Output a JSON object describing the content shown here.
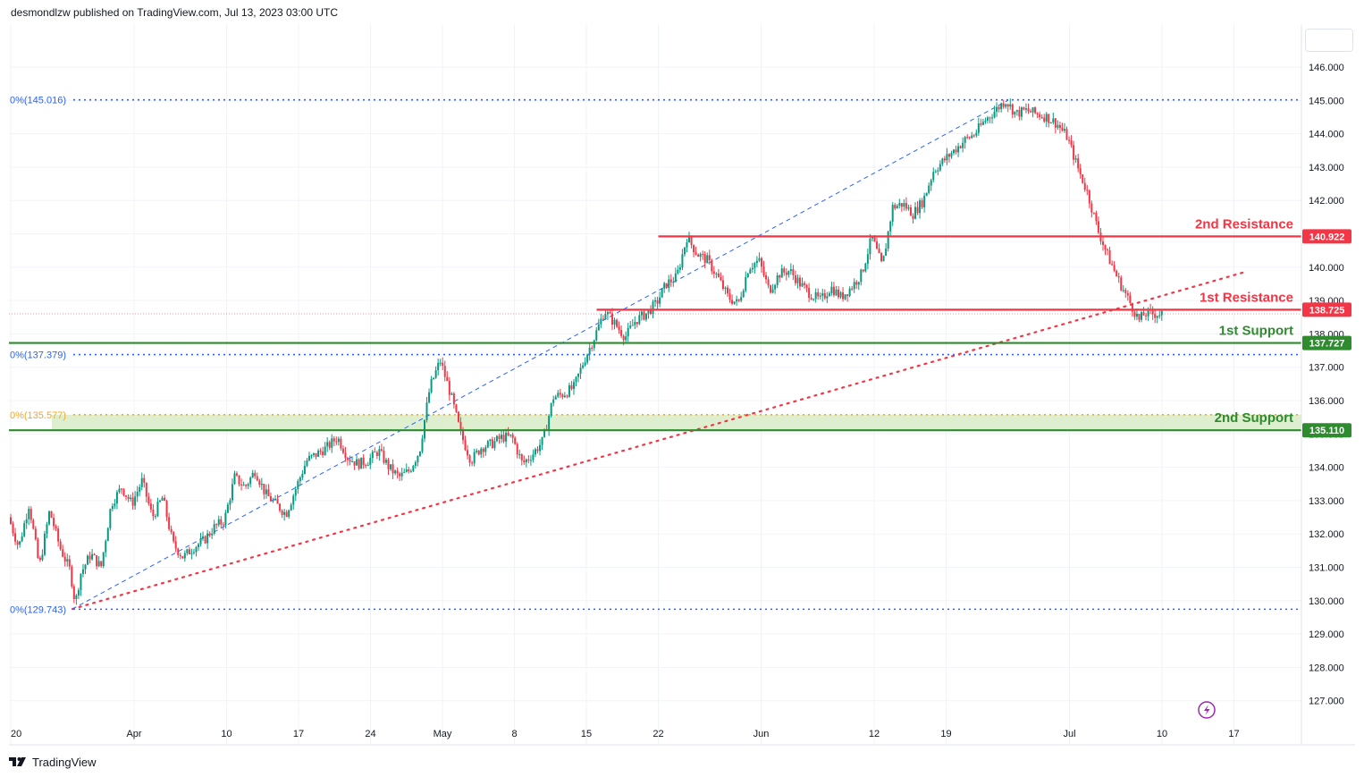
{
  "header": {
    "text": "desmondlzw published on TradingView.com, Jul 13, 2023 03:00 UTC"
  },
  "footer": {
    "brand": "TradingView",
    "logo_icon": "tradingview-logo-icon"
  },
  "colors": {
    "up": "#089981",
    "down": "#f23645",
    "resistance": "#f23645",
    "support": "#2e8b2e",
    "fib": "#2962ff",
    "fib_orange": "#f5a623",
    "zone": "#d8ecc8",
    "grid": "#f0f3fa",
    "flash": "#9c27b0"
  },
  "chart_data": {
    "type": "candlestick",
    "y_axis": {
      "range": [
        126.45,
        146.95
      ],
      "ticks": [
        "146.000",
        "145.000",
        "144.000",
        "143.000",
        "142.000",
        "141.000",
        "140.000",
        "139.000",
        "138.000",
        "137.000",
        "136.000",
        "135.000",
        "134.000",
        "133.000",
        "132.000",
        "131.000",
        "130.000",
        "129.000",
        "128.000",
        "127.000"
      ]
    },
    "x_axis": {
      "ticks": [
        {
          "label": "20",
          "day": 0
        },
        {
          "label": "Apr",
          "day": 12
        },
        {
          "label": "10",
          "day": 21
        },
        {
          "label": "17",
          "day": 28
        },
        {
          "label": "24",
          "day": 35
        },
        {
          "label": "May",
          "day": 42
        },
        {
          "label": "8",
          "day": 49
        },
        {
          "label": "15",
          "day": 56
        },
        {
          "label": "22",
          "day": 63
        },
        {
          "label": "Jun",
          "day": 73
        },
        {
          "label": "12",
          "day": 84
        },
        {
          "label": "19",
          "day": 91
        },
        {
          "label": "Jul",
          "day": 103
        },
        {
          "label": "10",
          "day": 112
        },
        {
          "label": "17",
          "day": 119
        }
      ]
    },
    "price_path": [
      [
        0,
        132.5
      ],
      [
        1,
        131.6
      ],
      [
        2,
        132.9
      ],
      [
        3,
        131.0
      ],
      [
        4,
        132.7
      ],
      [
        5,
        131.6
      ],
      [
        6,
        130.9
      ],
      [
        6.5,
        129.9
      ],
      [
        7,
        130.8
      ],
      [
        8,
        131.4
      ],
      [
        9,
        131.0
      ],
      [
        10,
        132.9
      ],
      [
        11,
        133.4
      ],
      [
        12,
        132.9
      ],
      [
        13,
        133.6
      ],
      [
        14,
        132.5
      ],
      [
        15,
        133.1
      ],
      [
        16,
        131.7
      ],
      [
        17,
        131.3
      ],
      [
        18,
        131.6
      ],
      [
        19,
        131.8
      ],
      [
        20,
        132.2
      ],
      [
        21,
        132.4
      ],
      [
        22,
        133.7
      ],
      [
        23,
        133.4
      ],
      [
        24,
        133.9
      ],
      [
        25,
        133.2
      ],
      [
        26,
        132.9
      ],
      [
        27,
        132.6
      ],
      [
        28,
        133.4
      ],
      [
        29,
        134.2
      ],
      [
        30,
        134.4
      ],
      [
        31,
        134.6
      ],
      [
        32,
        134.9
      ],
      [
        33,
        134.3
      ],
      [
        34,
        134.1
      ],
      [
        35,
        134.2
      ],
      [
        36,
        134.5
      ],
      [
        37,
        134.0
      ],
      [
        38,
        133.7
      ],
      [
        39,
        133.9
      ],
      [
        40,
        134.5
      ],
      [
        41,
        136.4
      ],
      [
        42,
        137.2
      ],
      [
        43,
        136.2
      ],
      [
        44,
        135.0
      ],
      [
        45,
        134.2
      ],
      [
        46,
        134.6
      ],
      [
        47,
        134.7
      ],
      [
        48,
        134.9
      ],
      [
        49,
        134.9
      ],
      [
        50,
        134.1
      ],
      [
        51,
        134.4
      ],
      [
        52,
        134.8
      ],
      [
        53,
        136.1
      ],
      [
        54,
        136.2
      ],
      [
        55,
        136.4
      ],
      [
        56,
        137.2
      ],
      [
        57,
        137.9
      ],
      [
        58,
        138.7
      ],
      [
        59,
        138.3
      ],
      [
        60,
        137.9
      ],
      [
        61,
        138.4
      ],
      [
        62,
        138.6
      ],
      [
        63,
        138.9
      ],
      [
        64,
        139.5
      ],
      [
        65,
        139.7
      ],
      [
        66,
        140.9
      ],
      [
        67,
        140.4
      ],
      [
        68,
        140.2
      ],
      [
        69,
        139.7
      ],
      [
        70,
        139.1
      ],
      [
        71,
        138.9
      ],
      [
        72,
        140.0
      ],
      [
        73,
        140.2
      ],
      [
        74,
        139.3
      ],
      [
        75,
        139.8
      ],
      [
        76,
        139.9
      ],
      [
        77,
        139.5
      ],
      [
        78,
        139.2
      ],
      [
        79,
        139.0
      ],
      [
        80,
        139.4
      ],
      [
        81,
        139.1
      ],
      [
        82,
        139.4
      ],
      [
        83,
        139.8
      ],
      [
        84,
        140.9
      ],
      [
        85,
        140.0
      ],
      [
        86,
        141.8
      ],
      [
        87,
        141.9
      ],
      [
        88,
        141.6
      ],
      [
        89,
        142.0
      ],
      [
        90,
        142.9
      ],
      [
        91,
        143.2
      ],
      [
        92,
        143.5
      ],
      [
        93,
        143.8
      ],
      [
        94,
        144.0
      ],
      [
        95,
        144.4
      ],
      [
        96,
        144.7
      ],
      [
        97,
        145.0
      ],
      [
        98,
        144.6
      ],
      [
        99,
        144.7
      ],
      [
        100,
        144.6
      ],
      [
        101,
        144.5
      ],
      [
        102,
        144.3
      ],
      [
        103,
        143.9
      ],
      [
        104,
        143.0
      ],
      [
        105,
        142.2
      ],
      [
        106,
        141.1
      ],
      [
        107,
        140.3
      ],
      [
        108,
        139.6
      ],
      [
        109,
        139.0
      ],
      [
        110,
        138.4
      ],
      [
        110.5,
        138.6
      ]
    ],
    "extent_day": 112,
    "levels": [
      {
        "name": "2nd Resistance",
        "value": 140.922,
        "tag": "140.922",
        "kind": "resistance",
        "from_day": 63
      },
      {
        "name": "1st Resistance",
        "value": 138.725,
        "tag": "138.725",
        "kind": "resistance",
        "from_day": 57
      },
      {
        "name": "1st Support",
        "value": 137.727,
        "tag": "137.727",
        "kind": "support",
        "from_day": 0
      },
      {
        "name": "2nd Support",
        "value": 135.11,
        "tag": "135.110",
        "kind": "support",
        "from_day": 0
      }
    ],
    "fib_levels": [
      {
        "label": "0%(145.016)",
        "value": 145.016,
        "color": "blue"
      },
      {
        "label": "0%(137.379)",
        "value": 137.379,
        "color": "blue"
      },
      {
        "label": "0%(135.577)",
        "value": 135.577,
        "color": "orange"
      },
      {
        "label": "0%(129.743)",
        "value": 129.743,
        "color": "blue"
      }
    ],
    "support_zone": [
      135.11,
      135.577
    ],
    "current_price": 138.6,
    "trendline_dotted": {
      "from": [
        6,
        129.75
      ],
      "to": [
        120,
        139.85
      ]
    },
    "channel_dashed": {
      "from": [
        6,
        129.75
      ],
      "to": [
        97,
        145.0
      ]
    }
  }
}
